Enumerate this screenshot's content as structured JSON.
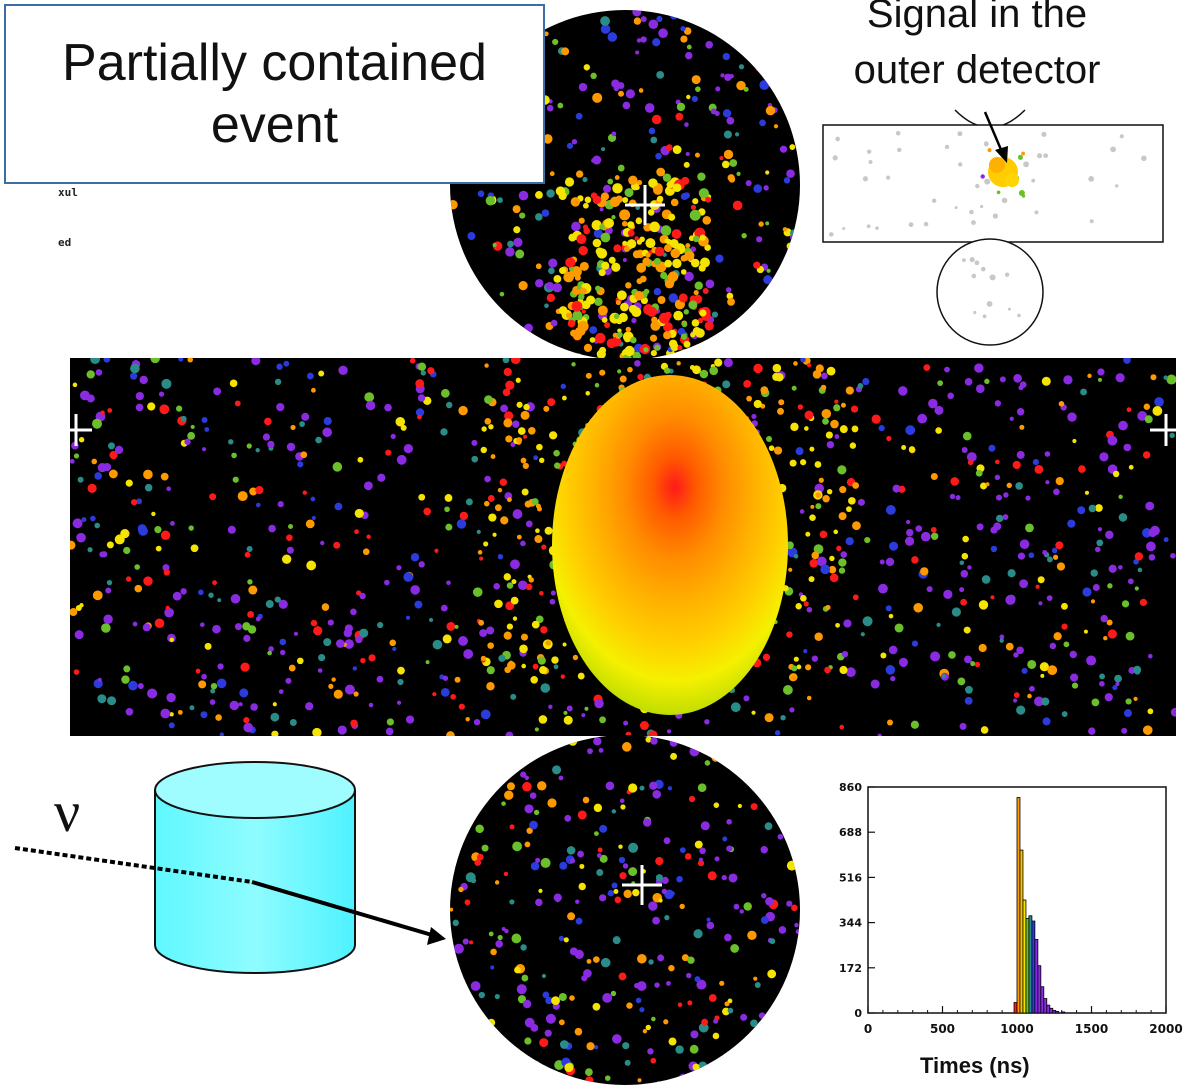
{
  "title": {
    "line1": "Partially contained",
    "line2": "event"
  },
  "callout": {
    "line1": "Signal in the",
    "line2": "outer detector"
  },
  "side_labels": [
    "xul",
    "ed"
  ],
  "neutrino_symbol": "ν",
  "colors": {
    "background_display": "#000000",
    "hit_purple": "#8a2be2",
    "hit_blue": "#2b3bdc",
    "hit_teal": "#2a8c88",
    "hit_green": "#6abf2a",
    "hit_yellow": "#f5e300",
    "hit_orange": "#ff9900",
    "hit_red": "#ff1a1a",
    "detector_cylinder": "#66ffff",
    "title_border": "#3a6ea5"
  },
  "chart_data": {
    "type": "bar",
    "xlabel": "Times (ns)",
    "ylabel": "",
    "xlim": [
      0,
      2000
    ],
    "ylim": [
      0,
      860
    ],
    "x_ticks": [
      "0",
      "500",
      "1000",
      "1500",
      "2000"
    ],
    "y_ticks": [
      "0",
      "172",
      "344",
      "516",
      "688",
      "860"
    ],
    "bin_width": 20,
    "bins": [
      {
        "x": 980,
        "value": 40,
        "color": "#ff1a1a"
      },
      {
        "x": 1000,
        "value": 820,
        "color": "#ff9900"
      },
      {
        "x": 1020,
        "value": 620,
        "color": "#f5c400"
      },
      {
        "x": 1040,
        "value": 430,
        "color": "#f5e300"
      },
      {
        "x": 1060,
        "value": 360,
        "color": "#6abf2a"
      },
      {
        "x": 1080,
        "value": 370,
        "color": "#2a8c88"
      },
      {
        "x": 1100,
        "value": 350,
        "color": "#2b3bdc"
      },
      {
        "x": 1120,
        "value": 280,
        "color": "#8a2be2"
      },
      {
        "x": 1140,
        "value": 180,
        "color": "#8a2be2"
      },
      {
        "x": 1160,
        "value": 100,
        "color": "#8a2be2"
      },
      {
        "x": 1180,
        "value": 55,
        "color": "#8a2be2"
      },
      {
        "x": 1200,
        "value": 30,
        "color": "#8a2be2"
      },
      {
        "x": 1220,
        "value": 18,
        "color": "#8a2be2"
      },
      {
        "x": 1240,
        "value": 10,
        "color": "#8a2be2"
      },
      {
        "x": 1260,
        "value": 6,
        "color": "#8a2be2"
      },
      {
        "x": 1300,
        "value": 4,
        "color": "#8a2be2"
      }
    ]
  }
}
